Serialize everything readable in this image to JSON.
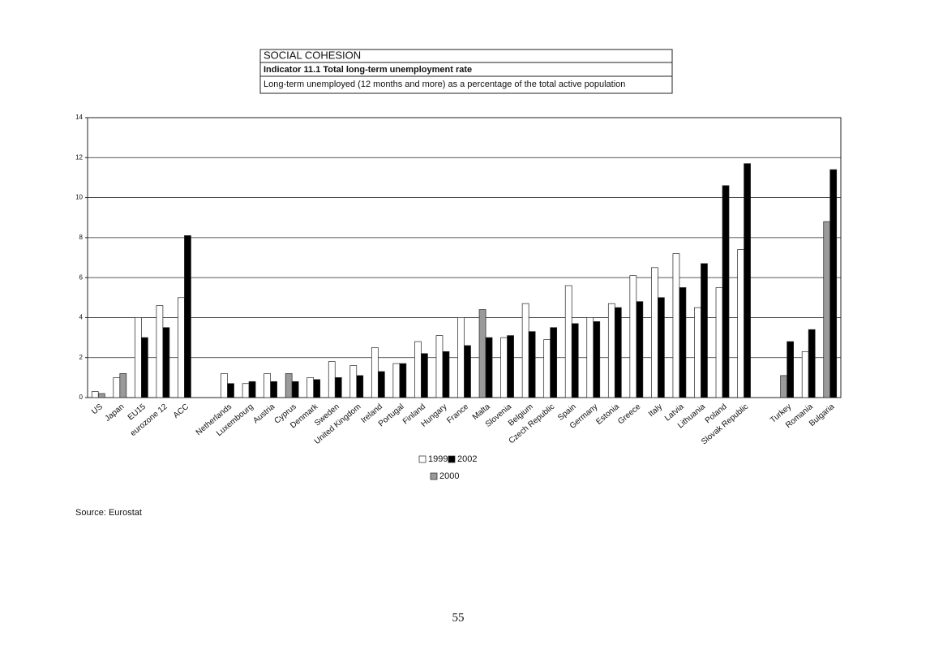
{
  "header": {
    "section": "SOCIAL COHESION",
    "indicator": "Indicator 11.1  Total long-term unemployment rate",
    "description": "Long-term unemployed (12 months and more) as a percentage of the total active population"
  },
  "chart_data": {
    "type": "bar",
    "categories": [
      "US",
      "Japan",
      "EU15",
      "eurozone 12",
      "ACC",
      null,
      "Netherlands",
      "Luxembourg",
      "Austria",
      "Cyprus",
      "Denmark",
      "Sweden",
      "United Kingdom",
      "Ireland",
      "Portugal",
      "Finland",
      "Hungary",
      "France",
      "Malta",
      "Slovenia",
      "Belgium",
      "Czech Republic",
      "Spain",
      "Germany",
      "Estonia",
      "Greece",
      "Italy",
      "Latvia",
      "Lithuania",
      "Poland",
      "Slovak Republic",
      null,
      "Turkey",
      "Romania",
      "Bulgaria"
    ],
    "series": [
      {
        "name": "1999",
        "color": "#ffffff",
        "values": [
          0.3,
          1.0,
          4.0,
          4.6,
          5.0,
          null,
          1.2,
          0.7,
          1.2,
          null,
          1.0,
          1.8,
          1.6,
          2.5,
          1.7,
          2.8,
          3.1,
          4.0,
          null,
          3.0,
          4.7,
          2.9,
          5.6,
          4.0,
          4.7,
          6.1,
          6.5,
          7.2,
          4.5,
          5.5,
          7.4,
          null,
          null,
          2.3,
          null
        ]
      },
      {
        "name": "2002",
        "color": "#000000",
        "values": [
          null,
          null,
          3.0,
          3.5,
          8.1,
          null,
          0.7,
          0.8,
          0.8,
          0.8,
          0.9,
          1.0,
          1.1,
          1.3,
          1.7,
          2.2,
          2.3,
          2.6,
          3.0,
          3.1,
          3.3,
          3.5,
          3.7,
          3.8,
          4.5,
          4.8,
          5.0,
          5.5,
          6.7,
          10.6,
          11.7,
          null,
          2.8,
          3.4,
          11.4
        ]
      },
      {
        "name": "2000",
        "color": "#9a9a9a",
        "values": [
          0.2,
          1.2,
          null,
          null,
          null,
          null,
          null,
          null,
          null,
          1.2,
          null,
          null,
          null,
          null,
          null,
          null,
          null,
          null,
          4.4,
          null,
          null,
          null,
          null,
          null,
          null,
          null,
          null,
          null,
          null,
          null,
          null,
          null,
          1.1,
          null,
          8.8
        ]
      }
    ],
    "ylim": [
      0,
      14
    ],
    "yticks": [
      0,
      2,
      4,
      6,
      8,
      10,
      12,
      14
    ],
    "grid": true
  },
  "source": "Source: Eurostat",
  "page_number": "55"
}
